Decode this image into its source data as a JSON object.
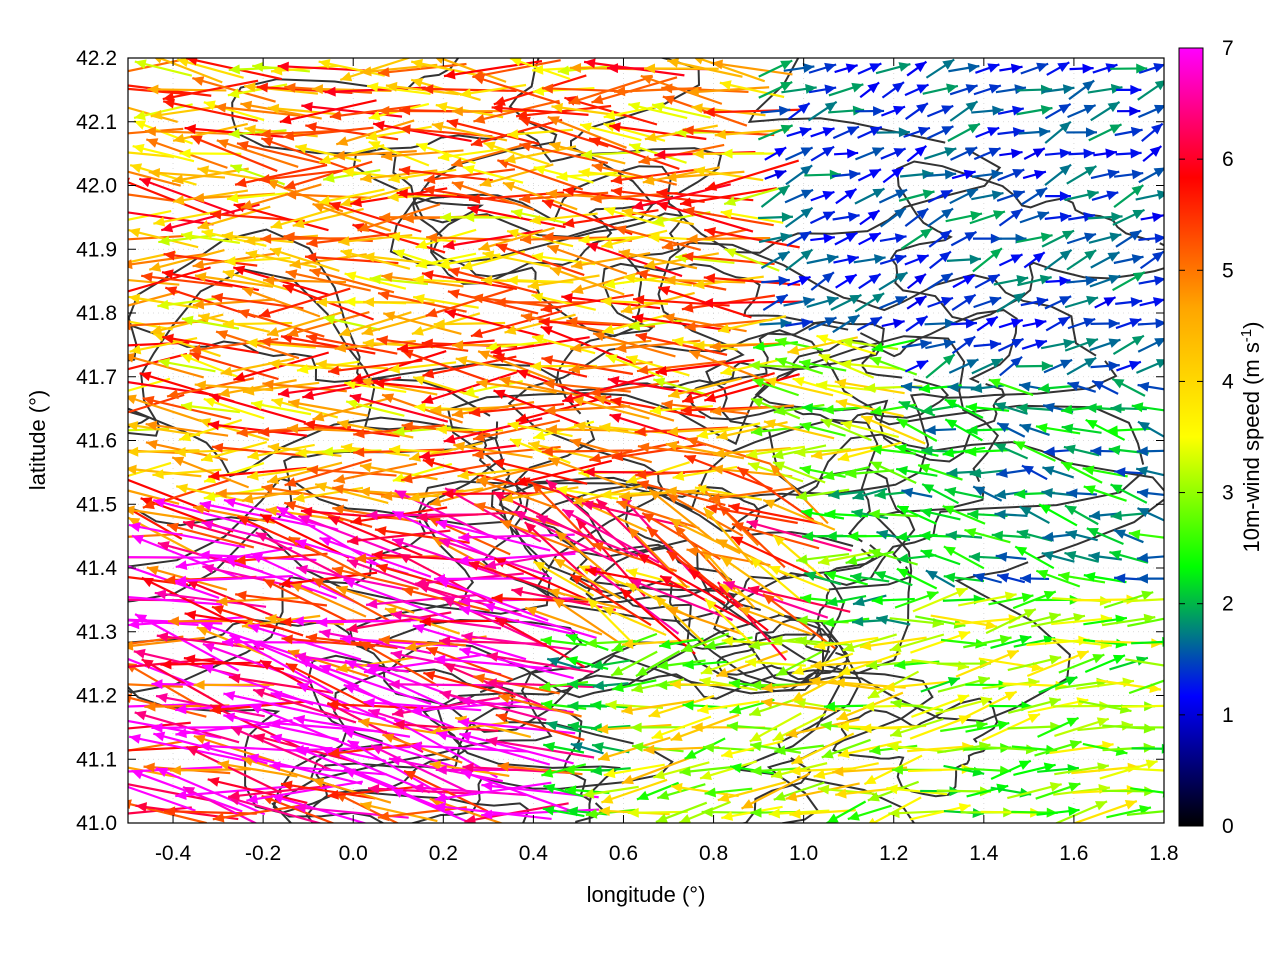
{
  "chart_data": {
    "type": "vector-field",
    "xlabel": "longitude (°)",
    "ylabel": "latitude (°)",
    "colorbar_label": "10m-wind speed (m s",
    "colorbar_label_sup": "-1",
    "colorbar_label_end": ")",
    "xlim": [
      -0.5,
      1.8
    ],
    "ylim": [
      41.0,
      42.2
    ],
    "xticks": [
      "-0.4",
      "-0.2",
      "0.0",
      "0.2",
      "0.4",
      "0.6",
      "0.8",
      "1.0",
      "1.2",
      "1.4",
      "1.6",
      "1.8"
    ],
    "xtick_values": [
      -0.4,
      -0.2,
      0.0,
      0.2,
      0.4,
      0.6,
      0.8,
      1.0,
      1.2,
      1.4,
      1.6,
      1.8
    ],
    "yticks": [
      "41.0",
      "41.1",
      "41.2",
      "41.3",
      "41.4",
      "41.5",
      "41.6",
      "41.7",
      "41.8",
      "41.9",
      "42.0",
      "42.1",
      "42.2"
    ],
    "ytick_values": [
      41.0,
      41.1,
      41.2,
      41.3,
      41.4,
      41.5,
      41.6,
      41.7,
      41.8,
      41.9,
      42.0,
      42.1,
      42.2
    ],
    "colorbar_range": [
      0,
      7
    ],
    "colorbar_ticks": [
      "0",
      "1",
      "2",
      "3",
      "4",
      "5",
      "6",
      "7"
    ],
    "colorbar_tick_values": [
      0,
      1,
      2,
      3,
      4,
      5,
      6,
      7
    ],
    "palette": [
      "#000000",
      "#0000ff",
      "#00ff00",
      "#ffff00",
      "#ffa500",
      "#ff0000",
      "#ff00ff"
    ],
    "grid": true,
    "contour_color": "#333333",
    "regions": [
      {
        "lon": [
          -0.5,
          0.45
        ],
        "lat": [
          41.0,
          41.5
        ],
        "speed": 6.4,
        "dir_deg": 170
      },
      {
        "lon": [
          -0.5,
          0.9
        ],
        "lat": [
          41.5,
          42.2
        ],
        "speed": 4.6,
        "dir_deg": 178
      },
      {
        "lon": [
          0.45,
          1.0
        ],
        "lat": [
          41.3,
          41.55
        ],
        "speed": 5.2,
        "dir_deg": 150
      },
      {
        "lon": [
          0.45,
          1.2
        ],
        "lat": [
          41.55,
          41.75
        ],
        "speed": 3.2,
        "dir_deg": 175
      },
      {
        "lon": [
          0.6,
          1.3
        ],
        "lat": [
          41.0,
          41.3
        ],
        "speed": 3.4,
        "dir_deg": 190
      },
      {
        "lon": [
          1.2,
          1.8
        ],
        "lat": [
          41.0,
          41.35
        ],
        "speed": 3.0,
        "dir_deg": 8
      },
      {
        "lon": [
          1.2,
          1.8
        ],
        "lat": [
          41.35,
          41.7
        ],
        "speed": 2.0,
        "dir_deg": 170
      },
      {
        "lon": [
          0.9,
          1.8
        ],
        "lat": [
          41.7,
          42.2
        ],
        "speed": 1.5,
        "dir_deg": 20
      }
    ]
  }
}
